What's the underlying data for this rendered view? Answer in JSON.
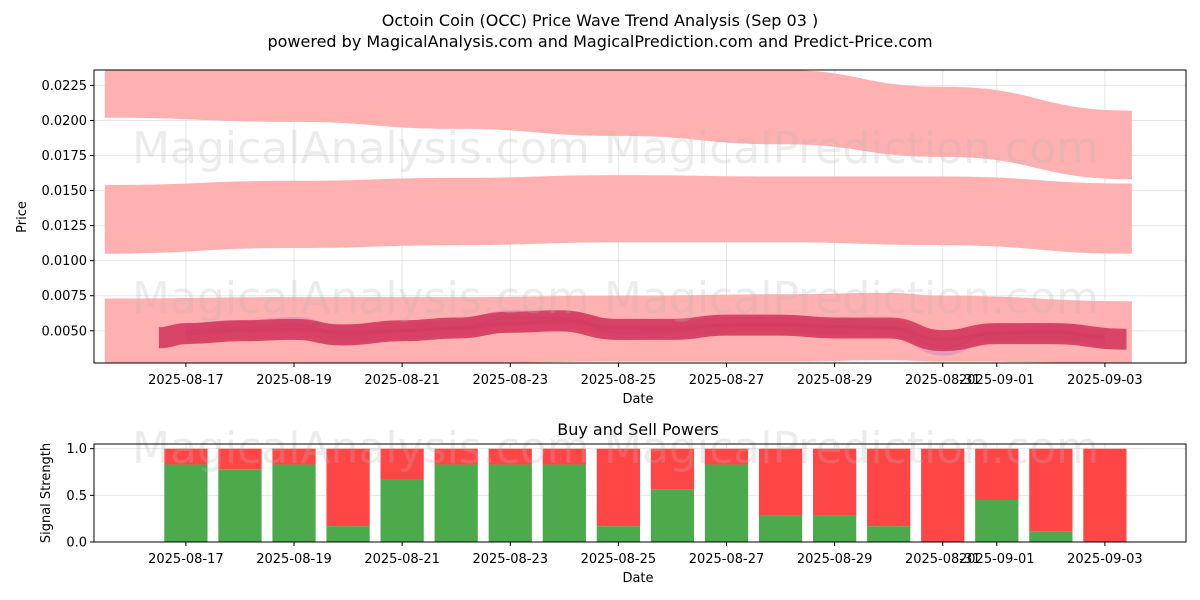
{
  "title_line1": "Octoin Coin (OCC) Price Wave Trend Analysis (Sep 03 )",
  "title_line2": "powered by MagicalAnalysis.com and MagicalPrediction.com and Predict-Price.com",
  "watermarks": [
    "MagicalAnalysis.com",
    "MagicalPrediction.com"
  ],
  "colors": {
    "band": "#ffb0b0",
    "wave_red": "#d53a5e",
    "wave_purple": "#8a63d2",
    "buy": "#4caa4c",
    "sell": "#ff4646"
  },
  "chart_data": [
    {
      "type": "area",
      "title": "",
      "xlabel": "Date",
      "ylabel": "Price",
      "ylim": [
        0.0027,
        0.0236
      ],
      "xlim": [
        "2025-08-15.3",
        "2025-09-04.5"
      ],
      "x_ticks": [
        "2025-08-17",
        "2025-08-19",
        "2025-08-21",
        "2025-08-23",
        "2025-08-25",
        "2025-08-27",
        "2025-08-29",
        "2025-08-31",
        "2025-09-01",
        "2025-09-03"
      ],
      "y_ticks": [
        "0.0050",
        "0.0075",
        "0.0100",
        "0.0125",
        "0.0150",
        "0.0175",
        "0.0200",
        "0.0225"
      ],
      "bands": [
        {
          "name": "upper band",
          "x": [
            15.5,
            19,
            22,
            25,
            28,
            31,
            34.5
          ],
          "upper": [
            0.0236,
            0.0236,
            0.0236,
            0.0236,
            0.0236,
            0.0224,
            0.0207
          ],
          "lower": [
            0.0202,
            0.0199,
            0.0194,
            0.0189,
            0.0183,
            0.0174,
            0.0158
          ]
        },
        {
          "name": "middle band",
          "x": [
            15.5,
            19,
            22,
            25,
            28,
            31,
            34.5
          ],
          "upper": [
            0.0154,
            0.0157,
            0.0159,
            0.0161,
            0.016,
            0.016,
            0.0155
          ],
          "lower": [
            0.0105,
            0.0109,
            0.0111,
            0.0113,
            0.0113,
            0.0111,
            0.0105
          ]
        },
        {
          "name": "lower band",
          "x": [
            15.5,
            19,
            22,
            25,
            28,
            30,
            31,
            34.5
          ],
          "upper": [
            0.0073,
            0.0074,
            0.0074,
            0.0075,
            0.0076,
            0.0077,
            0.0075,
            0.0071
          ],
          "lower": [
            0.0027,
            0.0027,
            0.0027,
            0.0028,
            0.0028,
            0.0029,
            0.0028,
            0.0027
          ]
        }
      ],
      "waves": [
        {
          "name": "purple wave",
          "color": "#8a63d2",
          "x": [
            17,
            18,
            19,
            20,
            21,
            22,
            23,
            24,
            25,
            26,
            27,
            28,
            29,
            30,
            31,
            32,
            33,
            34
          ],
          "y": [
            0.005,
            0.0052,
            0.0054,
            0.0047,
            0.005,
            0.0052,
            0.0059,
            0.0059,
            0.0049,
            0.005,
            0.0054,
            0.0055,
            0.0053,
            0.0052,
            0.0038,
            0.0049,
            0.005,
            0.0045
          ]
        },
        {
          "name": "red wave",
          "color": "#d53a5e",
          "x": [
            17,
            18,
            19,
            20,
            21,
            22,
            23,
            24,
            25,
            26,
            27,
            28,
            29,
            30,
            31,
            32,
            33,
            34
          ],
          "y": [
            0.0048,
            0.005,
            0.0051,
            0.0049,
            0.005,
            0.0052,
            0.0055,
            0.0057,
            0.0052,
            0.0052,
            0.0054,
            0.0054,
            0.0053,
            0.0052,
            0.0044,
            0.0048,
            0.0049,
            0.0046
          ]
        },
        {
          "name": "bold wave",
          "color": "#d53a5e",
          "x": [
            16.5,
            17,
            18,
            19,
            19.9,
            21,
            22,
            23,
            23.9,
            25,
            26,
            27,
            28,
            29,
            30,
            31,
            32,
            33,
            34.4
          ],
          "y": [
            0.0045,
            0.0048,
            0.005,
            0.0051,
            0.0047,
            0.005,
            0.0052,
            0.0056,
            0.0057,
            0.0051,
            0.0051,
            0.0054,
            0.0054,
            0.0052,
            0.0052,
            0.0043,
            0.0048,
            0.0048,
            0.0044
          ]
        }
      ]
    },
    {
      "type": "bar",
      "title": "Buy and Sell Powers",
      "xlabel": "Date",
      "ylabel": "Signal Strength",
      "ylim": [
        0,
        1.05
      ],
      "xlim": [
        "2025-08-15.3",
        "2025-09-04.5"
      ],
      "x_ticks": [
        "2025-08-17",
        "2025-08-19",
        "2025-08-21",
        "2025-08-23",
        "2025-08-25",
        "2025-08-27",
        "2025-08-29",
        "2025-08-31",
        "2025-09-01",
        "2025-09-03"
      ],
      "y_ticks": [
        "0.0",
        "0.5",
        "1.0"
      ],
      "categories": [
        "2025-08-17",
        "2025-08-18",
        "2025-08-19",
        "2025-08-20",
        "2025-08-21",
        "2025-08-22",
        "2025-08-23",
        "2025-08-24",
        "2025-08-25",
        "2025-08-26",
        "2025-08-27",
        "2025-08-28",
        "2025-08-29",
        "2025-08-30",
        "2025-08-31",
        "2025-09-01",
        "2025-09-02",
        "2025-09-03"
      ],
      "series": [
        {
          "name": "Buy",
          "color": "#4caa4c",
          "values": [
            0.83,
            0.78,
            0.83,
            0.17,
            0.67,
            0.83,
            0.83,
            0.83,
            0.17,
            0.56,
            0.83,
            0.28,
            0.28,
            0.17,
            0.0,
            0.45,
            0.11,
            0.0
          ]
        },
        {
          "name": "Sell",
          "color": "#ff4646",
          "values": [
            0.17,
            0.22,
            0.17,
            0.83,
            0.33,
            0.17,
            0.17,
            0.17,
            0.83,
            0.44,
            0.17,
            0.72,
            0.72,
            0.83,
            1.0,
            0.55,
            0.89,
            1.0
          ]
        }
      ]
    }
  ]
}
